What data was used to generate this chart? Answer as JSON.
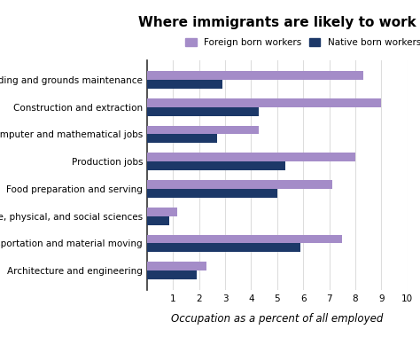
{
  "title": "Where immigrants are likely to work",
  "xlabel": "Occupation as a percent of all employed",
  "categories": [
    "Building and grounds maintenance",
    "Construction and extraction",
    "Computer and mathematical jobs",
    "Production jobs",
    "Food preparation and serving",
    "Life, physical, and social sciences",
    "Transportation and material moving",
    "Architecture and engineering"
  ],
  "foreign_born": [
    8.3,
    9.0,
    4.3,
    8.0,
    7.1,
    1.15,
    7.5,
    2.3
  ],
  "native_born": [
    2.9,
    4.3,
    2.7,
    5.3,
    5.0,
    0.85,
    5.9,
    1.9
  ],
  "foreign_color": "#a48cc8",
  "native_color": "#1c3868",
  "background_color": "#ffffff",
  "xlim": [
    0,
    10
  ],
  "xticks": [
    1,
    2,
    3,
    4,
    5,
    6,
    7,
    8,
    9,
    10
  ],
  "legend_labels": [
    "Foreign born workers",
    "Native born workers"
  ],
  "title_fontsize": 11,
  "label_fontsize": 7.5,
  "xlabel_fontsize": 8.5,
  "bar_height": 0.32
}
